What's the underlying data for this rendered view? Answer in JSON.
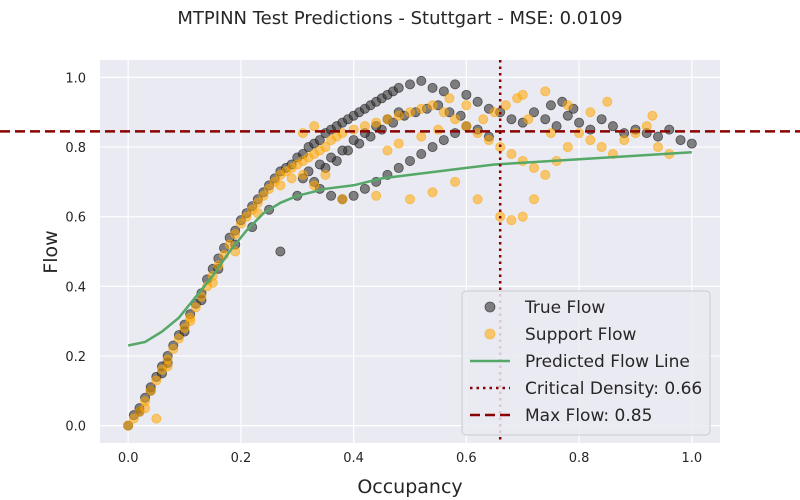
{
  "chart_data": {
    "type": "scatter",
    "title": "MTPINN Test Predictions - Stuttgart - MSE: 0.0109",
    "xlabel": "Occupancy",
    "ylabel": "Flow",
    "xlim": [
      -0.05,
      1.05
    ],
    "ylim": [
      -0.05,
      1.05
    ],
    "xticks": [
      "0.0",
      "0.2",
      "0.4",
      "0.6",
      "0.8",
      "1.0"
    ],
    "yticks": [
      "0.0",
      "0.2",
      "0.4",
      "0.6",
      "0.8",
      "1.0"
    ],
    "grid": true,
    "legend_position": "lower-right",
    "series": [
      {
        "name": "True Flow",
        "kind": "scatter",
        "color": "#333333",
        "points": [
          [
            0.0,
            0.0
          ],
          [
            0.01,
            0.03
          ],
          [
            0.02,
            0.05
          ],
          [
            0.03,
            0.08
          ],
          [
            0.04,
            0.11
          ],
          [
            0.05,
            0.14
          ],
          [
            0.06,
            0.17
          ],
          [
            0.07,
            0.2
          ],
          [
            0.08,
            0.23
          ],
          [
            0.09,
            0.26
          ],
          [
            0.1,
            0.29
          ],
          [
            0.11,
            0.32
          ],
          [
            0.12,
            0.35
          ],
          [
            0.13,
            0.38
          ],
          [
            0.14,
            0.42
          ],
          [
            0.15,
            0.45
          ],
          [
            0.16,
            0.48
          ],
          [
            0.17,
            0.51
          ],
          [
            0.18,
            0.54
          ],
          [
            0.19,
            0.56
          ],
          [
            0.2,
            0.59
          ],
          [
            0.21,
            0.61
          ],
          [
            0.22,
            0.63
          ],
          [
            0.23,
            0.65
          ],
          [
            0.24,
            0.67
          ],
          [
            0.25,
            0.69
          ],
          [
            0.26,
            0.71
          ],
          [
            0.27,
            0.73
          ],
          [
            0.28,
            0.74
          ],
          [
            0.29,
            0.75
          ],
          [
            0.3,
            0.77
          ],
          [
            0.31,
            0.78
          ],
          [
            0.32,
            0.8
          ],
          [
            0.33,
            0.81
          ],
          [
            0.34,
            0.82
          ],
          [
            0.35,
            0.84
          ],
          [
            0.36,
            0.85
          ],
          [
            0.37,
            0.86
          ],
          [
            0.38,
            0.87
          ],
          [
            0.39,
            0.88
          ],
          [
            0.4,
            0.89
          ],
          [
            0.41,
            0.9
          ],
          [
            0.42,
            0.91
          ],
          [
            0.43,
            0.92
          ],
          [
            0.44,
            0.93
          ],
          [
            0.45,
            0.94
          ],
          [
            0.46,
            0.95
          ],
          [
            0.47,
            0.96
          ],
          [
            0.48,
            0.97
          ],
          [
            0.5,
            0.98
          ],
          [
            0.52,
            0.99
          ],
          [
            0.54,
            0.97
          ],
          [
            0.56,
            0.96
          ],
          [
            0.58,
            0.98
          ],
          [
            0.6,
            0.95
          ],
          [
            0.62,
            0.93
          ],
          [
            0.64,
            0.91
          ],
          [
            0.66,
            0.9
          ],
          [
            0.68,
            0.88
          ],
          [
            0.7,
            0.87
          ],
          [
            0.33,
            0.7
          ],
          [
            0.34,
            0.68
          ],
          [
            0.36,
            0.66
          ],
          [
            0.38,
            0.65
          ],
          [
            0.4,
            0.66
          ],
          [
            0.42,
            0.68
          ],
          [
            0.44,
            0.7
          ],
          [
            0.46,
            0.72
          ],
          [
            0.48,
            0.74
          ],
          [
            0.5,
            0.76
          ],
          [
            0.52,
            0.78
          ],
          [
            0.54,
            0.8
          ],
          [
            0.56,
            0.82
          ],
          [
            0.58,
            0.84
          ],
          [
            0.6,
            0.86
          ],
          [
            0.62,
            0.85
          ],
          [
            0.64,
            0.83
          ],
          [
            0.35,
            0.74
          ],
          [
            0.37,
            0.76
          ],
          [
            0.39,
            0.79
          ],
          [
            0.41,
            0.81
          ],
          [
            0.43,
            0.83
          ],
          [
            0.45,
            0.85
          ],
          [
            0.47,
            0.87
          ],
          [
            0.49,
            0.89
          ],
          [
            0.51,
            0.9
          ],
          [
            0.53,
            0.91
          ],
          [
            0.55,
            0.92
          ],
          [
            0.57,
            0.9
          ],
          [
            0.59,
            0.89
          ],
          [
            0.31,
            0.71
          ],
          [
            0.32,
            0.73
          ],
          [
            0.34,
            0.75
          ],
          [
            0.36,
            0.77
          ],
          [
            0.38,
            0.79
          ],
          [
            0.4,
            0.82
          ],
          [
            0.42,
            0.84
          ],
          [
            0.44,
            0.86
          ],
          [
            0.46,
            0.88
          ],
          [
            0.48,
            0.9
          ],
          [
            0.72,
            0.9
          ],
          [
            0.74,
            0.88
          ],
          [
            0.76,
            0.86
          ],
          [
            0.78,
            0.89
          ],
          [
            0.8,
            0.87
          ],
          [
            0.82,
            0.85
          ],
          [
            0.84,
            0.88
          ],
          [
            0.86,
            0.86
          ],
          [
            0.88,
            0.84
          ],
          [
            0.9,
            0.85
          ],
          [
            0.92,
            0.84
          ],
          [
            0.94,
            0.83
          ],
          [
            0.96,
            0.85
          ],
          [
            0.98,
            0.82
          ],
          [
            1.0,
            0.81
          ],
          [
            0.75,
            0.92
          ],
          [
            0.77,
            0.93
          ],
          [
            0.79,
            0.91
          ],
          [
            0.27,
            0.5
          ],
          [
            0.3,
            0.66
          ],
          [
            0.25,
            0.62
          ],
          [
            0.22,
            0.57
          ],
          [
            0.19,
            0.52
          ],
          [
            0.16,
            0.45
          ],
          [
            0.13,
            0.36
          ],
          [
            0.1,
            0.27
          ],
          [
            0.07,
            0.18
          ],
          [
            0.04,
            0.1
          ],
          [
            0.02,
            0.04
          ],
          [
            0.06,
            0.15
          ]
        ]
      },
      {
        "name": "Support Flow",
        "kind": "scatter",
        "color": "#ffa500",
        "points": [
          [
            0.0,
            0.0
          ],
          [
            0.01,
            0.02
          ],
          [
            0.02,
            0.04
          ],
          [
            0.03,
            0.07
          ],
          [
            0.04,
            0.1
          ],
          [
            0.05,
            0.13
          ],
          [
            0.06,
            0.16
          ],
          [
            0.07,
            0.19
          ],
          [
            0.08,
            0.22
          ],
          [
            0.09,
            0.25
          ],
          [
            0.1,
            0.28
          ],
          [
            0.11,
            0.31
          ],
          [
            0.12,
            0.34
          ],
          [
            0.13,
            0.37
          ],
          [
            0.14,
            0.4
          ],
          [
            0.15,
            0.43
          ],
          [
            0.16,
            0.46
          ],
          [
            0.17,
            0.49
          ],
          [
            0.18,
            0.52
          ],
          [
            0.19,
            0.55
          ],
          [
            0.2,
            0.58
          ],
          [
            0.21,
            0.6
          ],
          [
            0.22,
            0.62
          ],
          [
            0.23,
            0.64
          ],
          [
            0.24,
            0.66
          ],
          [
            0.25,
            0.68
          ],
          [
            0.26,
            0.7
          ],
          [
            0.27,
            0.72
          ],
          [
            0.28,
            0.73
          ],
          [
            0.29,
            0.74
          ],
          [
            0.3,
            0.75
          ],
          [
            0.31,
            0.76
          ],
          [
            0.32,
            0.77
          ],
          [
            0.33,
            0.78
          ],
          [
            0.34,
            0.79
          ],
          [
            0.35,
            0.8
          ],
          [
            0.36,
            0.82
          ],
          [
            0.37,
            0.83
          ],
          [
            0.38,
            0.84
          ],
          [
            0.4,
            0.85
          ],
          [
            0.42,
            0.86
          ],
          [
            0.44,
            0.87
          ],
          [
            0.46,
            0.88
          ],
          [
            0.48,
            0.89
          ],
          [
            0.5,
            0.9
          ],
          [
            0.52,
            0.91
          ],
          [
            0.54,
            0.92
          ],
          [
            0.56,
            0.9
          ],
          [
            0.58,
            0.88
          ],
          [
            0.6,
            0.86
          ],
          [
            0.62,
            0.84
          ],
          [
            0.64,
            0.82
          ],
          [
            0.66,
            0.8
          ],
          [
            0.68,
            0.78
          ],
          [
            0.7,
            0.76
          ],
          [
            0.72,
            0.74
          ],
          [
            0.74,
            0.72
          ],
          [
            0.76,
            0.76
          ],
          [
            0.78,
            0.8
          ],
          [
            0.8,
            0.84
          ],
          [
            0.82,
            0.82
          ],
          [
            0.84,
            0.8
          ],
          [
            0.86,
            0.78
          ],
          [
            0.88,
            0.82
          ],
          [
            0.9,
            0.84
          ],
          [
            0.92,
            0.86
          ],
          [
            0.94,
            0.8
          ],
          [
            0.96,
            0.78
          ],
          [
            0.85,
            0.93
          ],
          [
            0.93,
            0.89
          ],
          [
            0.66,
            0.6
          ],
          [
            0.68,
            0.59
          ],
          [
            0.7,
            0.6
          ],
          [
            0.72,
            0.65
          ],
          [
            0.62,
            0.65
          ],
          [
            0.58,
            0.7
          ],
          [
            0.54,
            0.67
          ],
          [
            0.5,
            0.65
          ],
          [
            0.44,
            0.66
          ],
          [
            0.38,
            0.65
          ],
          [
            0.33,
            0.69
          ],
          [
            0.35,
            0.72
          ],
          [
            0.31,
            0.84
          ],
          [
            0.33,
            0.86
          ],
          [
            0.57,
            0.94
          ],
          [
            0.6,
            0.92
          ],
          [
            0.7,
            0.95
          ],
          [
            0.74,
            0.96
          ],
          [
            0.78,
            0.92
          ],
          [
            0.82,
            0.9
          ],
          [
            0.05,
            0.02
          ],
          [
            0.03,
            0.05
          ],
          [
            0.07,
            0.17
          ],
          [
            0.11,
            0.3
          ],
          [
            0.15,
            0.41
          ],
          [
            0.19,
            0.5
          ],
          [
            0.23,
            0.61
          ],
          [
            0.27,
            0.69
          ],
          [
            0.29,
            0.71
          ],
          [
            0.31,
            0.72
          ],
          [
            0.46,
            0.79
          ],
          [
            0.48,
            0.81
          ],
          [
            0.52,
            0.83
          ],
          [
            0.55,
            0.85
          ],
          [
            0.63,
            0.88
          ],
          [
            0.65,
            0.9
          ],
          [
            0.67,
            0.92
          ],
          [
            0.69,
            0.94
          ],
          [
            0.71,
            0.88
          ],
          [
            0.75,
            0.84
          ]
        ]
      },
      {
        "name": "Predicted Flow Line",
        "kind": "line",
        "color": "#55a868",
        "points": [
          [
            0.0,
            0.23
          ],
          [
            0.03,
            0.24
          ],
          [
            0.06,
            0.27
          ],
          [
            0.09,
            0.31
          ],
          [
            0.12,
            0.37
          ],
          [
            0.15,
            0.43
          ],
          [
            0.18,
            0.5
          ],
          [
            0.21,
            0.56
          ],
          [
            0.24,
            0.61
          ],
          [
            0.27,
            0.64
          ],
          [
            0.3,
            0.66
          ],
          [
            0.35,
            0.68
          ],
          [
            0.4,
            0.69
          ],
          [
            0.45,
            0.71
          ],
          [
            0.5,
            0.72
          ],
          [
            0.55,
            0.73
          ],
          [
            0.6,
            0.74
          ],
          [
            0.65,
            0.75
          ],
          [
            0.7,
            0.755
          ],
          [
            0.75,
            0.76
          ],
          [
            0.8,
            0.765
          ],
          [
            0.85,
            0.77
          ],
          [
            0.9,
            0.775
          ],
          [
            0.95,
            0.78
          ],
          [
            1.0,
            0.785
          ]
        ]
      }
    ],
    "reference_lines": [
      {
        "name": "Critical Density: 0.66",
        "orientation": "vertical",
        "value": 0.66,
        "color": "#8b0000",
        "style": "dotted"
      },
      {
        "name": "Max Flow: 0.85",
        "orientation": "horizontal",
        "value": 0.845,
        "color": "#8b0000",
        "style": "dashed"
      }
    ]
  }
}
